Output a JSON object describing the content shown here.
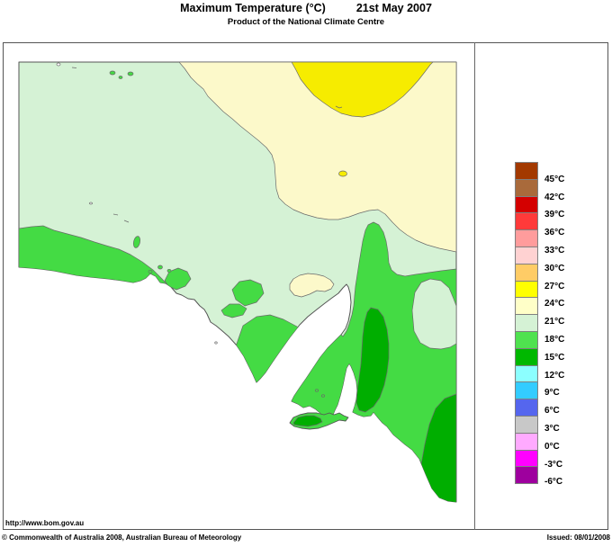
{
  "header": {
    "title": "Maximum Temperature (°C)",
    "date": "21st May 2007",
    "subtitle": "Product of the National Climate Centre"
  },
  "footer": {
    "url": "http://www.bom.gov.au",
    "copyright": "© Commonwealth of Australia 2008, Australian Bureau of Meteorology",
    "issued": "Issued: 08/01/2008"
  },
  "legend": {
    "units": "°C",
    "entries": [
      {
        "color": "#A33900",
        "label": "45°C"
      },
      {
        "color": "#A96A3B",
        "label": "42°C"
      },
      {
        "color": "#D40000",
        "label": "39°C"
      },
      {
        "color": "#FF3A3A",
        "label": "36°C"
      },
      {
        "color": "#FF9C9C",
        "label": "33°C"
      },
      {
        "color": "#FFD2D2",
        "label": "30°C"
      },
      {
        "color": "#FFCC66",
        "label": "27°C"
      },
      {
        "color": "#FFFF00",
        "label": "24°C"
      },
      {
        "color": "#FFFFC8",
        "label": "21°C"
      },
      {
        "color": "#D5F2D5",
        "label": "18°C"
      },
      {
        "color": "#4FE24F",
        "label": "15°C"
      },
      {
        "color": "#00B800",
        "label": "12°C"
      },
      {
        "color": "#8CFFFF",
        "label": "9°C"
      },
      {
        "color": "#33CCFF",
        "label": "6°C"
      },
      {
        "color": "#5566EE",
        "label": "3°C"
      },
      {
        "color": "#C8C8C8",
        "label": "0°C"
      },
      {
        "color": "#FFAAFF",
        "label": "-3°C"
      },
      {
        "color": "#FF00FF",
        "label": "-6°C"
      },
      {
        "color": "#9E009E",
        "label": null
      }
    ]
  },
  "map": {
    "region": "South Australia maximum temperature analysis",
    "colors": {
      "sea": "#FFFFFF",
      "band_18_21": "#D5F2D5",
      "band_21_24": "#FCF9CA",
      "band_24_27": "#F6EC00",
      "band_15_18": "#44DB44",
      "band_12_15": "#00AE00",
      "lake": "#FFFFFF",
      "outline": "#666666"
    }
  }
}
